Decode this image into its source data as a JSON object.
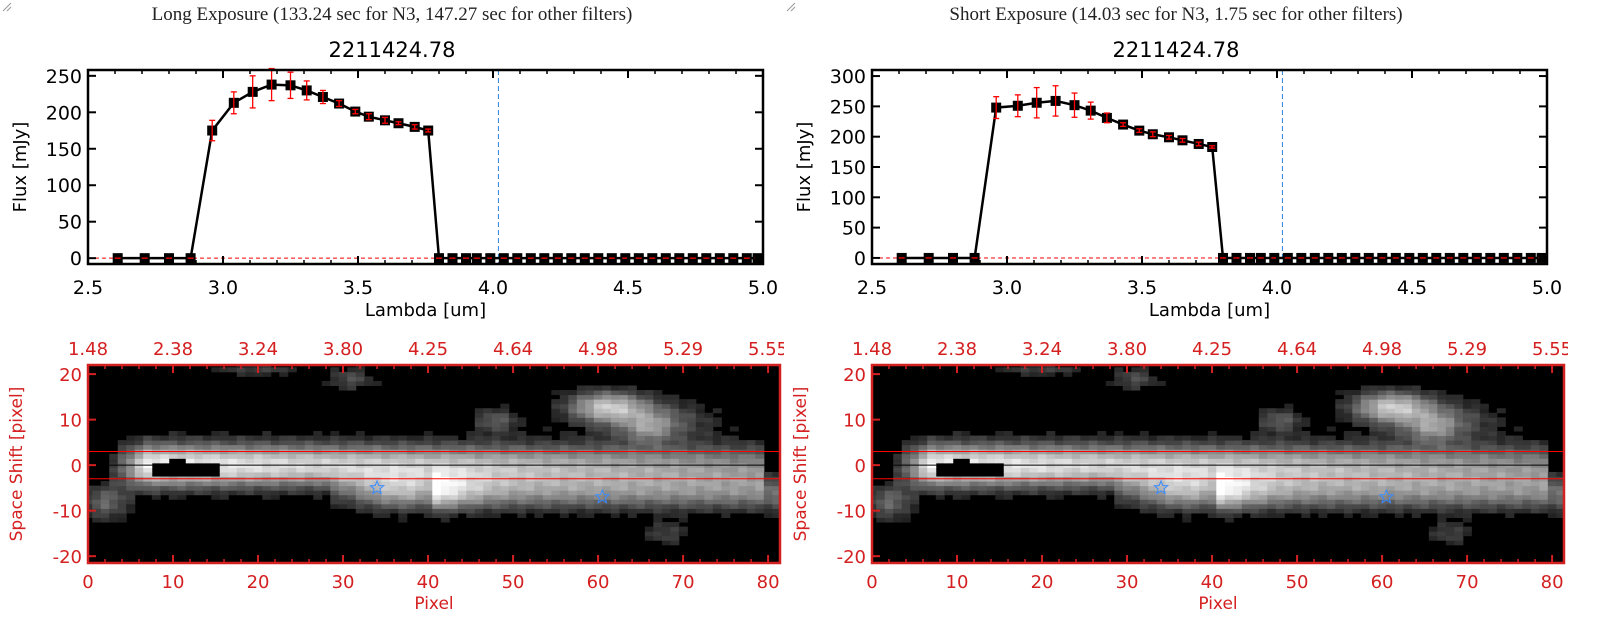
{
  "colors": {
    "axis_dark": "#000000",
    "axis_red": "#d42020",
    "errorbar": "#ff0000",
    "marker_line": "#000000",
    "dashed_vline": "#3080e0",
    "star": "#3a8cff",
    "band_line": "#ff0000"
  },
  "panels": [
    {
      "title": "Long Exposure (133.24 sec for N3, 147.27 sec for other filters)",
      "subtitle": "2211424.78"
    },
    {
      "title": "Short Exposure (14.03 sec for N3, 1.75 sec for other filters)",
      "subtitle": "2211424.78"
    }
  ],
  "chart_data": [
    {
      "type": "line",
      "xlabel": "Lambda [um]",
      "ylabel": "Flux [mJy]",
      "xlim": [
        2.5,
        5.0
      ],
      "ylim": [
        -8,
        258
      ],
      "xticks": [
        "2.5",
        "3.0",
        "3.5",
        "4.0",
        "4.5",
        "5.0"
      ],
      "yticks": [
        "0",
        "50",
        "100",
        "150",
        "200",
        "250"
      ],
      "vline_x": 4.02,
      "hline_y": 0,
      "x": [
        2.61,
        2.71,
        2.8,
        2.88,
        2.96,
        3.04,
        3.11,
        3.18,
        3.25,
        3.31,
        3.37,
        3.43,
        3.49,
        3.54,
        3.6,
        3.65,
        3.71,
        3.76,
        3.8,
        3.85,
        3.9,
        3.94,
        3.99,
        4.04,
        4.09,
        4.14,
        4.19,
        4.24,
        4.29,
        4.34,
        4.39,
        4.44,
        4.49,
        4.54,
        4.59,
        4.64,
        4.69,
        4.74,
        4.79,
        4.84,
        4.89,
        4.94,
        4.98
      ],
      "y": [
        0,
        0,
        0,
        0,
        175,
        213,
        228,
        238,
        237,
        230,
        221,
        212,
        201,
        194,
        189,
        185,
        180,
        175,
        0,
        0,
        0,
        0,
        0,
        0,
        0,
        0,
        0,
        0,
        0,
        0,
        0,
        0,
        0,
        0,
        0,
        0,
        0,
        0,
        0,
        0,
        0,
        0,
        0
      ],
      "yerr": [
        0,
        0,
        0,
        0,
        14,
        15,
        22,
        22,
        18,
        13,
        9,
        4,
        3,
        4,
        4,
        2,
        3,
        2,
        0,
        0,
        0,
        0,
        0,
        0,
        0,
        0,
        0,
        0,
        0,
        0,
        0,
        0,
        0,
        0,
        0,
        0,
        0,
        0,
        0,
        0,
        0,
        0,
        0
      ]
    },
    {
      "type": "line",
      "xlabel": "Lambda [um]",
      "ylabel": "Flux [mJy]",
      "xlim": [
        2.5,
        5.0
      ],
      "ylim": [
        -10,
        310
      ],
      "xticks": [
        "2.5",
        "3.0",
        "3.5",
        "4.0",
        "4.5",
        "5.0"
      ],
      "yticks": [
        "0",
        "50",
        "100",
        "150",
        "200",
        "250",
        "300"
      ],
      "vline_x": 4.02,
      "hline_y": 0,
      "x": [
        2.61,
        2.71,
        2.8,
        2.88,
        2.96,
        3.04,
        3.11,
        3.18,
        3.25,
        3.31,
        3.37,
        3.43,
        3.49,
        3.54,
        3.6,
        3.65,
        3.71,
        3.76,
        3.8,
        3.85,
        3.9,
        3.94,
        3.99,
        4.04,
        4.09,
        4.14,
        4.19,
        4.24,
        4.29,
        4.34,
        4.39,
        4.44,
        4.49,
        4.54,
        4.59,
        4.64,
        4.69,
        4.74,
        4.79,
        4.84,
        4.89,
        4.94,
        4.98
      ],
      "y": [
        0,
        0,
        0,
        0,
        248,
        251,
        256,
        259,
        252,
        243,
        231,
        220,
        210,
        204,
        199,
        194,
        188,
        183,
        0,
        0,
        0,
        0,
        0,
        0,
        0,
        0,
        0,
        0,
        0,
        0,
        0,
        0,
        0,
        0,
        0,
        0,
        0,
        0,
        0,
        0,
        0,
        0,
        0
      ],
      "yerr": [
        0,
        0,
        0,
        0,
        18,
        18,
        25,
        25,
        20,
        14,
        8,
        3,
        3,
        4,
        3,
        3,
        3,
        2,
        0,
        0,
        0,
        0,
        0,
        0,
        0,
        0,
        0,
        0,
        0,
        0,
        0,
        0,
        0,
        0,
        0,
        0,
        0,
        0,
        0,
        0,
        0,
        0,
        0
      ]
    },
    {
      "type": "heatmap",
      "xlabel": "Pixel",
      "ylabel": "Space Shift [pixel]",
      "xlim": [
        0,
        81.4
      ],
      "ylim": [
        -21.5,
        22
      ],
      "xticks": [
        "0",
        "10",
        "20",
        "30",
        "40",
        "50",
        "60",
        "70",
        "80"
      ],
      "yticks": [
        "-20",
        "-10",
        "0",
        "10",
        "20"
      ],
      "top_ticks": [
        "1.48",
        "2.38",
        "3.24",
        "3.80",
        "4.25",
        "4.64",
        "4.98",
        "5.29",
        "5.55"
      ],
      "band_lines_y": [
        3,
        -3
      ],
      "center_line_y": 0,
      "stars": [
        {
          "x": 34,
          "y": -5
        },
        {
          "x": 60.5,
          "y": -7
        }
      ],
      "colormap": "grayscale"
    },
    {
      "type": "heatmap",
      "xlabel": "Pixel",
      "ylabel": "Space Shift [pixel]",
      "xlim": [
        0,
        81.4
      ],
      "ylim": [
        -21.5,
        22
      ],
      "xticks": [
        "0",
        "10",
        "20",
        "30",
        "40",
        "50",
        "60",
        "70",
        "80"
      ],
      "yticks": [
        "-20",
        "-10",
        "0",
        "10",
        "20"
      ],
      "top_ticks": [
        "1.48",
        "2.38",
        "3.24",
        "3.80",
        "4.25",
        "4.64",
        "4.98",
        "5.29",
        "5.55"
      ],
      "band_lines_y": [
        3,
        -3
      ],
      "center_line_y": 0,
      "stars": [
        {
          "x": 34,
          "y": -5
        },
        {
          "x": 60.5,
          "y": -7
        }
      ],
      "colormap": "grayscale"
    }
  ]
}
